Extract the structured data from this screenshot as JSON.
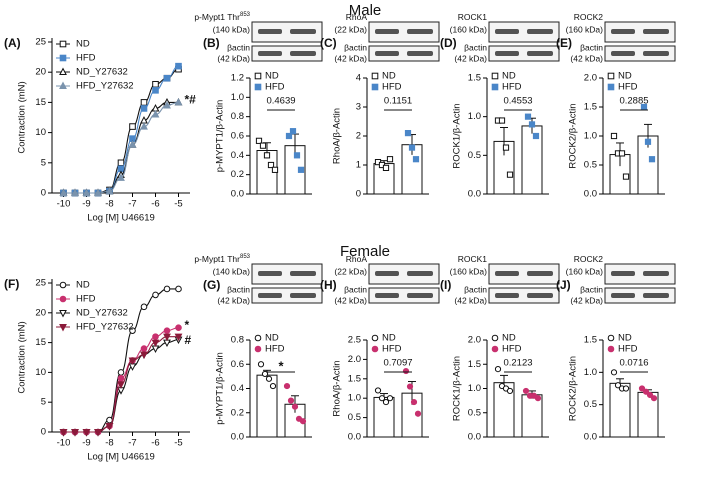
{
  "headings": [
    "Male",
    "Female"
  ],
  "chart_data": [
    {
      "type": "line",
      "panel": "(A)",
      "ylabel": "Contraction (mN)",
      "xlabel": "Log [M] U46619",
      "x": [
        -10,
        -9.5,
        -9,
        -8.5,
        -8,
        -7.5,
        -7,
        -6.5,
        -6,
        -5.5,
        -5
      ],
      "xlim": [
        -10.5,
        -4.5
      ],
      "xticks": [
        -10,
        -9,
        -8,
        -7,
        -6,
        -5
      ],
      "ylim": [
        0,
        25
      ],
      "yticks": [
        0,
        5,
        10,
        15,
        20,
        25
      ],
      "annotations": [
        "*#"
      ],
      "series": [
        {
          "name": "ND",
          "color": "#111111",
          "marker": "square",
          "filled": false,
          "values": [
            0,
            0,
            0,
            0,
            0.5,
            5,
            11,
            15,
            18,
            19,
            20.5
          ]
        },
        {
          "name": "HFD",
          "color": "#4a86c8",
          "marker": "square",
          "filled": true,
          "values": [
            0,
            0,
            0,
            0,
            0.3,
            4,
            9,
            14,
            17,
            19,
            21
          ]
        },
        {
          "name": "ND_Y27632",
          "color": "#111111",
          "marker": "triangle",
          "filled": false,
          "values": [
            0,
            0,
            0,
            0,
            0.3,
            3,
            8,
            12,
            14,
            15,
            15
          ]
        },
        {
          "name": "HFD_Y27632",
          "color": "#7a93ad",
          "marker": "triangle",
          "filled": true,
          "values": [
            0,
            0,
            0,
            0,
            0.3,
            2.5,
            8,
            11,
            13,
            14.5,
            15
          ]
        }
      ]
    },
    {
      "type": "bar",
      "panel": "(B)",
      "ylabel": "p-MYPT1/β-Actin",
      "annotation": "0.4639",
      "blot": {
        "target": "p-Mypt1 Thr",
        "target_sup": "853",
        "target_kda": "(140 kDa)",
        "control": "βactin",
        "control_kda": "(42 kDa)"
      },
      "ylim": [
        0,
        1.2
      ],
      "yticks": [
        {
          "value": 0,
          "label": "0.0"
        },
        0.2,
        0.4,
        0.6,
        0.8,
        {
          "value": 1,
          "label": "1.0"
        },
        1.2
      ],
      "series": [
        {
          "name": "ND",
          "color": "#111111",
          "marker": "square",
          "filled": false,
          "values": [
            0.45
          ],
          "errors": [
            0.08
          ],
          "points": [
            0.55,
            0.5,
            0.4,
            0.3,
            0.25
          ]
        },
        {
          "name": "HFD",
          "color": "#4a86c8",
          "marker": "square",
          "filled": true,
          "values": [
            0.5
          ],
          "errors": [
            0.12
          ],
          "points": [
            0.6,
            0.65,
            0.4,
            0.25
          ]
        }
      ]
    },
    {
      "type": "bar",
      "panel": "(C)",
      "ylabel": "RhoA/β-Actin",
      "annotation": "0.1151",
      "blot": {
        "target": "RhoA",
        "target_kda": "(22 kDa)",
        "control": "βactin",
        "control_kda": "(42 kDa)"
      },
      "ylim": [
        0,
        4
      ],
      "yticks": [
        0,
        1,
        2,
        3,
        4
      ],
      "series": [
        {
          "name": "ND",
          "color": "#111111",
          "marker": "square",
          "filled": false,
          "values": [
            1.05
          ],
          "errors": [
            0.1
          ],
          "points": [
            1.1,
            1.0,
            0.9,
            1.2
          ]
        },
        {
          "name": "HFD",
          "color": "#4a86c8",
          "marker": "square",
          "filled": true,
          "values": [
            1.7
          ],
          "errors": [
            0.35
          ],
          "points": [
            2.1,
            1.6,
            1.2
          ]
        }
      ]
    },
    {
      "type": "bar",
      "panel": "(D)",
      "ylabel": "ROCK1/β-Actin",
      "annotation": "0.4553",
      "blot": {
        "target": "ROCK1",
        "target_kda": "(160 kDa)",
        "control": "βactin",
        "control_kda": "(42 kDa)"
      },
      "ylim": [
        0,
        1.5
      ],
      "yticks": [
        {
          "value": 0,
          "label": "0.0"
        },
        0.5,
        {
          "value": 1,
          "label": "1.0"
        },
        1.5
      ],
      "series": [
        {
          "name": "ND",
          "color": "#111111",
          "marker": "square",
          "filled": false,
          "values": [
            0.68
          ],
          "errors": [
            0.18
          ],
          "points": [
            0.95,
            0.95,
            0.6,
            0.25
          ]
        },
        {
          "name": "HFD",
          "color": "#4a86c8",
          "marker": "square",
          "filled": true,
          "values": [
            0.88
          ],
          "errors": [
            0.1
          ],
          "points": [
            1.0,
            0.9,
            0.75
          ]
        }
      ]
    },
    {
      "type": "bar",
      "panel": "(E)",
      "ylabel": "ROCK2/β-Actin",
      "annotation": "0.2885",
      "blot": {
        "target": "ROCK2",
        "target_kda": "(160 kDa)",
        "control": "βactin",
        "control_kda": "(42 kDa)"
      },
      "ylim": [
        0,
        2
      ],
      "yticks": [
        {
          "value": 0,
          "label": "0.0"
        },
        0.5,
        {
          "value": 1,
          "label": "1.0"
        },
        1.5,
        {
          "value": 2,
          "label": "2.0"
        }
      ],
      "series": [
        {
          "name": "ND",
          "color": "#111111",
          "marker": "square",
          "filled": false,
          "values": [
            0.68
          ],
          "errors": [
            0.2
          ],
          "points": [
            1.0,
            0.7,
            0.7,
            0.3
          ]
        },
        {
          "name": "HFD",
          "color": "#4a86c8",
          "marker": "square",
          "filled": true,
          "values": [
            1.0
          ],
          "errors": [
            0.2
          ],
          "points": [
            1.5,
            0.9,
            0.6
          ]
        }
      ]
    },
    {
      "type": "line",
      "panel": "(F)",
      "ylabel": "Contraction (mN)",
      "xlabel": "Log [M] U46619",
      "x": [
        -10,
        -9.5,
        -9,
        -8.5,
        -8,
        -7.5,
        -7,
        -6.5,
        -6,
        -5.5,
        -5
      ],
      "xlim": [
        -10.5,
        -4.5
      ],
      "xticks": [
        -10,
        -9,
        -8,
        -7,
        -6,
        -5
      ],
      "ylim": [
        0,
        25
      ],
      "yticks": [
        0,
        5,
        10,
        15,
        20,
        25
      ],
      "annotations": [
        "*",
        "#"
      ],
      "series": [
        {
          "name": "ND",
          "color": "#111111",
          "marker": "circle",
          "filled": false,
          "values": [
            0,
            0,
            0,
            0,
            2,
            10,
            17,
            21,
            23,
            24,
            24
          ]
        },
        {
          "name": "HFD",
          "color": "#c8306e",
          "marker": "circle",
          "filled": true,
          "values": [
            0,
            0,
            0,
            0,
            1,
            9,
            12,
            14,
            16,
            17,
            17.5
          ]
        },
        {
          "name": "ND_Y27632",
          "color": "#111111",
          "marker": "triangle-down",
          "filled": false,
          "values": [
            0,
            0,
            0,
            0,
            1,
            7,
            11,
            13,
            14,
            15,
            15.5
          ]
        },
        {
          "name": "HFD_Y27632",
          "color": "#8b1a3a",
          "marker": "triangle-down",
          "filled": true,
          "values": [
            0,
            0,
            0,
            0,
            1,
            8,
            12,
            13,
            15,
            16,
            16
          ]
        }
      ]
    },
    {
      "type": "bar",
      "panel": "(G)",
      "ylabel": "p-MYPT1/β-Actin",
      "annotation": "*",
      "blot": {
        "target": "p-Mypt1 Thr",
        "target_sup": "853",
        "target_kda": "(140 kDa)",
        "control": "βactin",
        "control_kda": "(42 kDa)"
      },
      "ylim": [
        0,
        0.8
      ],
      "yticks": [
        {
          "value": 0,
          "label": "0.0"
        },
        0.2,
        0.4,
        0.6,
        0.8
      ],
      "series": [
        {
          "name": "ND",
          "color": "#111111",
          "marker": "circle",
          "filled": false,
          "values": [
            0.51
          ],
          "errors": [
            0.04
          ],
          "points": [
            0.6,
            0.52,
            0.48,
            0.42
          ]
        },
        {
          "name": "HFD",
          "color": "#c8306e",
          "marker": "circle",
          "filled": true,
          "values": [
            0.27
          ],
          "errors": [
            0.07
          ],
          "points": [
            0.42,
            0.3,
            0.25,
            0.15,
            0.13
          ]
        }
      ]
    },
    {
      "type": "bar",
      "panel": "(H)",
      "ylabel": "RhoA/β-Actin",
      "annotation": "0.7097",
      "blot": {
        "target": "RhoA",
        "target_kda": "(22 kDa)",
        "control": "βactin",
        "control_kda": "(42 kDa)"
      },
      "ylim": [
        0,
        2.5
      ],
      "yticks": [
        {
          "value": 0,
          "label": "0.0"
        },
        0.5,
        {
          "value": 1,
          "label": "1.0"
        },
        1.5,
        {
          "value": 2,
          "label": "2.0"
        },
        2.5
      ],
      "series": [
        {
          "name": "ND",
          "color": "#111111",
          "marker": "circle",
          "filled": false,
          "values": [
            1.02
          ],
          "errors": [
            0.1
          ],
          "points": [
            1.2,
            1.0,
            0.9,
            1.0
          ]
        },
        {
          "name": "HFD",
          "color": "#c8306e",
          "marker": "circle",
          "filled": true,
          "values": [
            1.13
          ],
          "errors": [
            0.3
          ],
          "points": [
            1.7,
            1.3,
            0.9,
            0.6
          ]
        }
      ]
    },
    {
      "type": "bar",
      "panel": "(I)",
      "ylabel": "ROCK1/β-Actin",
      "annotation": "0.2123",
      "blot": {
        "target": "ROCK1",
        "target_kda": "(160 kDa)",
        "control": "βactin",
        "control_kda": "(42 kDa)"
      },
      "ylim": [
        0,
        2
      ],
      "yticks": [
        {
          "value": 0,
          "label": "0.0"
        },
        0.5,
        {
          "value": 1,
          "label": "1.0"
        },
        1.5,
        {
          "value": 2,
          "label": "2.0"
        }
      ],
      "series": [
        {
          "name": "ND",
          "color": "#111111",
          "marker": "circle",
          "filled": false,
          "values": [
            1.12
          ],
          "errors": [
            0.15
          ],
          "points": [
            1.4,
            1.05,
            1.0,
            0.95
          ]
        },
        {
          "name": "HFD",
          "color": "#c8306e",
          "marker": "circle",
          "filled": true,
          "values": [
            0.87
          ],
          "errors": [
            0.08
          ],
          "points": [
            0.95,
            0.85,
            0.85,
            0.8
          ]
        }
      ]
    },
    {
      "type": "bar",
      "panel": "(J)",
      "ylabel": "ROCK2/β-Actin",
      "annotation": "0.0716",
      "blot": {
        "target": "ROCK2",
        "target_kda": "(160 kDa)",
        "control": "βactin",
        "control_kda": "(42 kDa)"
      },
      "ylim": [
        0,
        1.5
      ],
      "yticks": [
        {
          "value": 0,
          "label": "0.0"
        },
        0.5,
        {
          "value": 1,
          "label": "1.0"
        },
        1.5
      ],
      "series": [
        {
          "name": "ND",
          "color": "#111111",
          "marker": "circle",
          "filled": false,
          "values": [
            0.83
          ],
          "errors": [
            0.07
          ],
          "points": [
            1.0,
            0.8,
            0.75,
            0.75
          ]
        },
        {
          "name": "HFD",
          "color": "#c8306e",
          "marker": "circle",
          "filled": true,
          "values": [
            0.69
          ],
          "errors": [
            0.04
          ],
          "points": [
            0.75,
            0.7,
            0.65,
            0.6
          ]
        }
      ]
    }
  ]
}
